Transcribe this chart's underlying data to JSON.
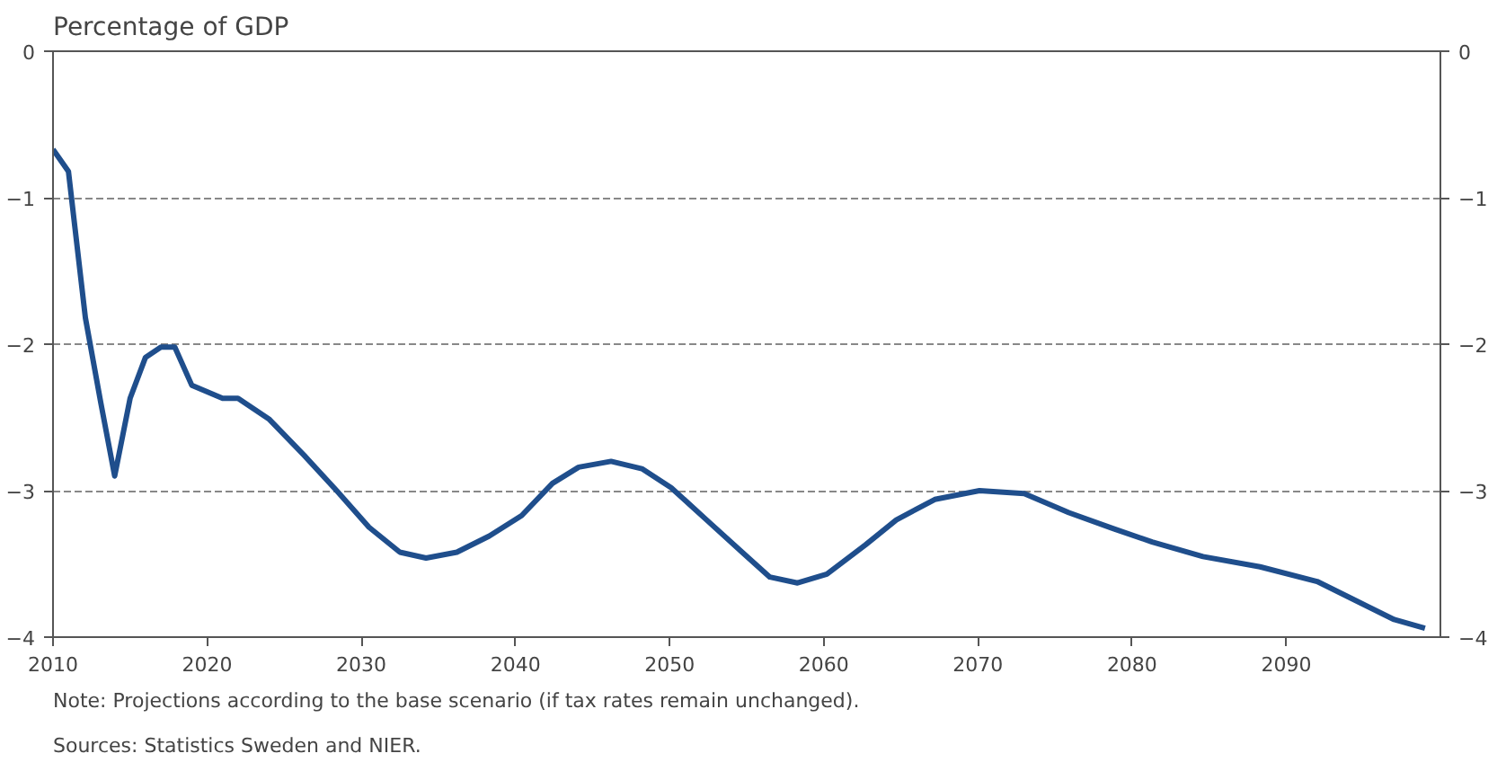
{
  "chart_data": {
    "type": "line",
    "title": "Percentage of GDP",
    "annotations": [
      "Note: Projections according to the base scenario (if tax rates remain unchanged).",
      "Sources: Statistics Sweden and NIER."
    ],
    "xlim": [
      2010,
      2100
    ],
    "xticks": [
      2010,
      2020,
      2030,
      2040,
      2050,
      2060,
      2070,
      2080,
      2090
    ],
    "ylim": [
      -4,
      0
    ],
    "yticks": [
      -4,
      -3,
      -2,
      -1,
      0
    ],
    "y2lim": [
      -4,
      0
    ],
    "y2ticks": [
      -4,
      -3,
      -2,
      -1,
      0
    ],
    "grid": "y",
    "line_style": "solid",
    "series": [
      {
        "color": "#1f4e8c",
        "x": [
          2010,
          2011,
          2012.1,
          2013.1,
          2014,
          2015,
          2016,
          2017,
          2017.9,
          2019,
          2021,
          2022,
          2024,
          2026.3,
          2028.4,
          2030.5,
          2032.5,
          2034.2,
          2036.2,
          2038.3,
          2040.4,
          2042.4,
          2044.1,
          2046.2,
          2048.2,
          2050.1,
          2052.4,
          2054.8,
          2056.5,
          2058.3,
          2060.2,
          2062.7,
          2064.7,
          2067.2,
          2070.1,
          2073,
          2075.9,
          2078.8,
          2081.3,
          2084.6,
          2088.3,
          2092,
          2094.5,
          2097,
          2099
        ],
        "values": [
          -0.67,
          -0.82,
          -1.82,
          -2.4,
          -2.9,
          -2.37,
          -2.09,
          -2.02,
          -2.02,
          -2.28,
          -2.37,
          -2.37,
          -2.51,
          -2.76,
          -3.0,
          -3.25,
          -3.42,
          -3.46,
          -3.42,
          -3.31,
          -3.17,
          -2.95,
          -2.84,
          -2.8,
          -2.85,
          -2.98,
          -3.2,
          -3.43,
          -3.59,
          -3.63,
          -3.57,
          -3.37,
          -3.2,
          -3.06,
          -3.0,
          -3.02,
          -3.15,
          -3.26,
          -3.35,
          -3.45,
          -3.52,
          -3.62,
          -3.75,
          -3.88,
          -3.94
        ]
      }
    ]
  }
}
